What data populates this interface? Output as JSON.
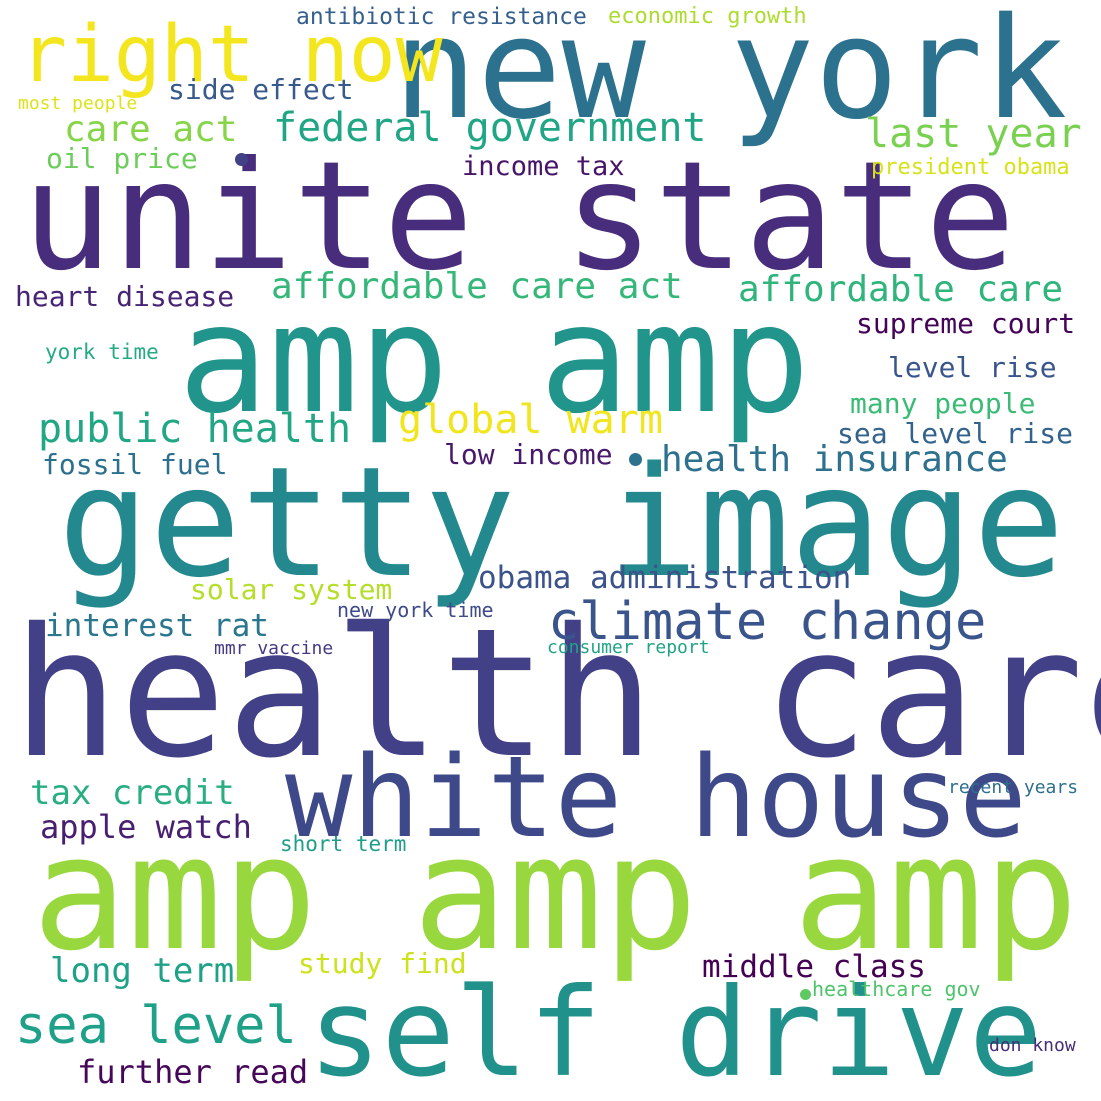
{
  "words": [
    {
      "text": "unite state",
      "color": "#472d7b"
    },
    {
      "text": "health care",
      "color": "#424086"
    },
    {
      "text": "getty image",
      "color": "#23898e"
    },
    {
      "text": "amp amp",
      "color": "#21948c"
    },
    {
      "text": "amp amp amp",
      "color": "#98d83e"
    },
    {
      "text": "new york",
      "color": "#2c728e"
    },
    {
      "text": "self drive",
      "color": "#21918c"
    },
    {
      "text": "white house",
      "color": "#3e4989"
    },
    {
      "text": "right now",
      "color": "#f4e61e"
    },
    {
      "text": "climate change",
      "color": "#3a548c"
    },
    {
      "text": "federal government",
      "color": "#21a685"
    },
    {
      "text": "last year",
      "color": "#7ad151"
    },
    {
      "text": "sea level",
      "color": "#1fa088"
    },
    {
      "text": "affordable care act",
      "color": "#35b779"
    },
    {
      "text": "affordable care",
      "color": "#2fb47c"
    },
    {
      "text": "public health",
      "color": "#22a785"
    },
    {
      "text": "global warm",
      "color": "#f1e51d"
    },
    {
      "text": "health insurance",
      "color": "#2d718e"
    },
    {
      "text": "care act",
      "color": "#86d549"
    },
    {
      "text": "obama administration",
      "color": "#3b528b"
    },
    {
      "text": "interest rat",
      "color": "#2a768e"
    },
    {
      "text": "middle class",
      "color": "#440154"
    },
    {
      "text": "tax credit",
      "color": "#29af7f"
    },
    {
      "text": "apple watch",
      "color": "#481f70"
    },
    {
      "text": "long term",
      "color": "#1fa187"
    },
    {
      "text": "further read",
      "color": "#46075a"
    },
    {
      "text": "solar system",
      "color": "#b5de2b"
    },
    {
      "text": "study find",
      "color": "#cde11d"
    },
    {
      "text": "heart disease",
      "color": "#482475"
    },
    {
      "text": "supreme court",
      "color": "#450457"
    },
    {
      "text": "level rise",
      "color": "#39558c"
    },
    {
      "text": "many people",
      "color": "#3bbb75"
    },
    {
      "text": "sea level rise",
      "color": "#33638d"
    },
    {
      "text": "fossil fuel",
      "color": "#2d708e"
    },
    {
      "text": "low income",
      "color": "#48186a"
    },
    {
      "text": "side effect",
      "color": "#38598c"
    },
    {
      "text": "oil price",
      "color": "#6ccd5a"
    },
    {
      "text": "income tax",
      "color": "#481467"
    },
    {
      "text": "antibiotic resistance",
      "color": "#355f8d"
    },
    {
      "text": "economic growth",
      "color": "#addc30"
    },
    {
      "text": "president obama",
      "color": "#d8e219"
    },
    {
      "text": "most people",
      "color": "#dde318"
    },
    {
      "text": "york time",
      "color": "#25ab82"
    },
    {
      "text": "new york time",
      "color": "#3e4a89"
    },
    {
      "text": "mmr vaccine",
      "color": "#443a83"
    },
    {
      "text": "consumer report",
      "color": "#20a386"
    },
    {
      "text": "short term",
      "color": "#1f9e89"
    },
    {
      "text": "recent years",
      "color": "#2e6f8e"
    },
    {
      "text": "healthcare gov",
      "color": "#4ec36b"
    },
    {
      "text": "don know",
      "color": "#472c7a"
    }
  ],
  "dots": [
    {
      "color": "#424086"
    },
    {
      "color": "#2c728e"
    },
    {
      "color": "#5ec962"
    }
  ]
}
